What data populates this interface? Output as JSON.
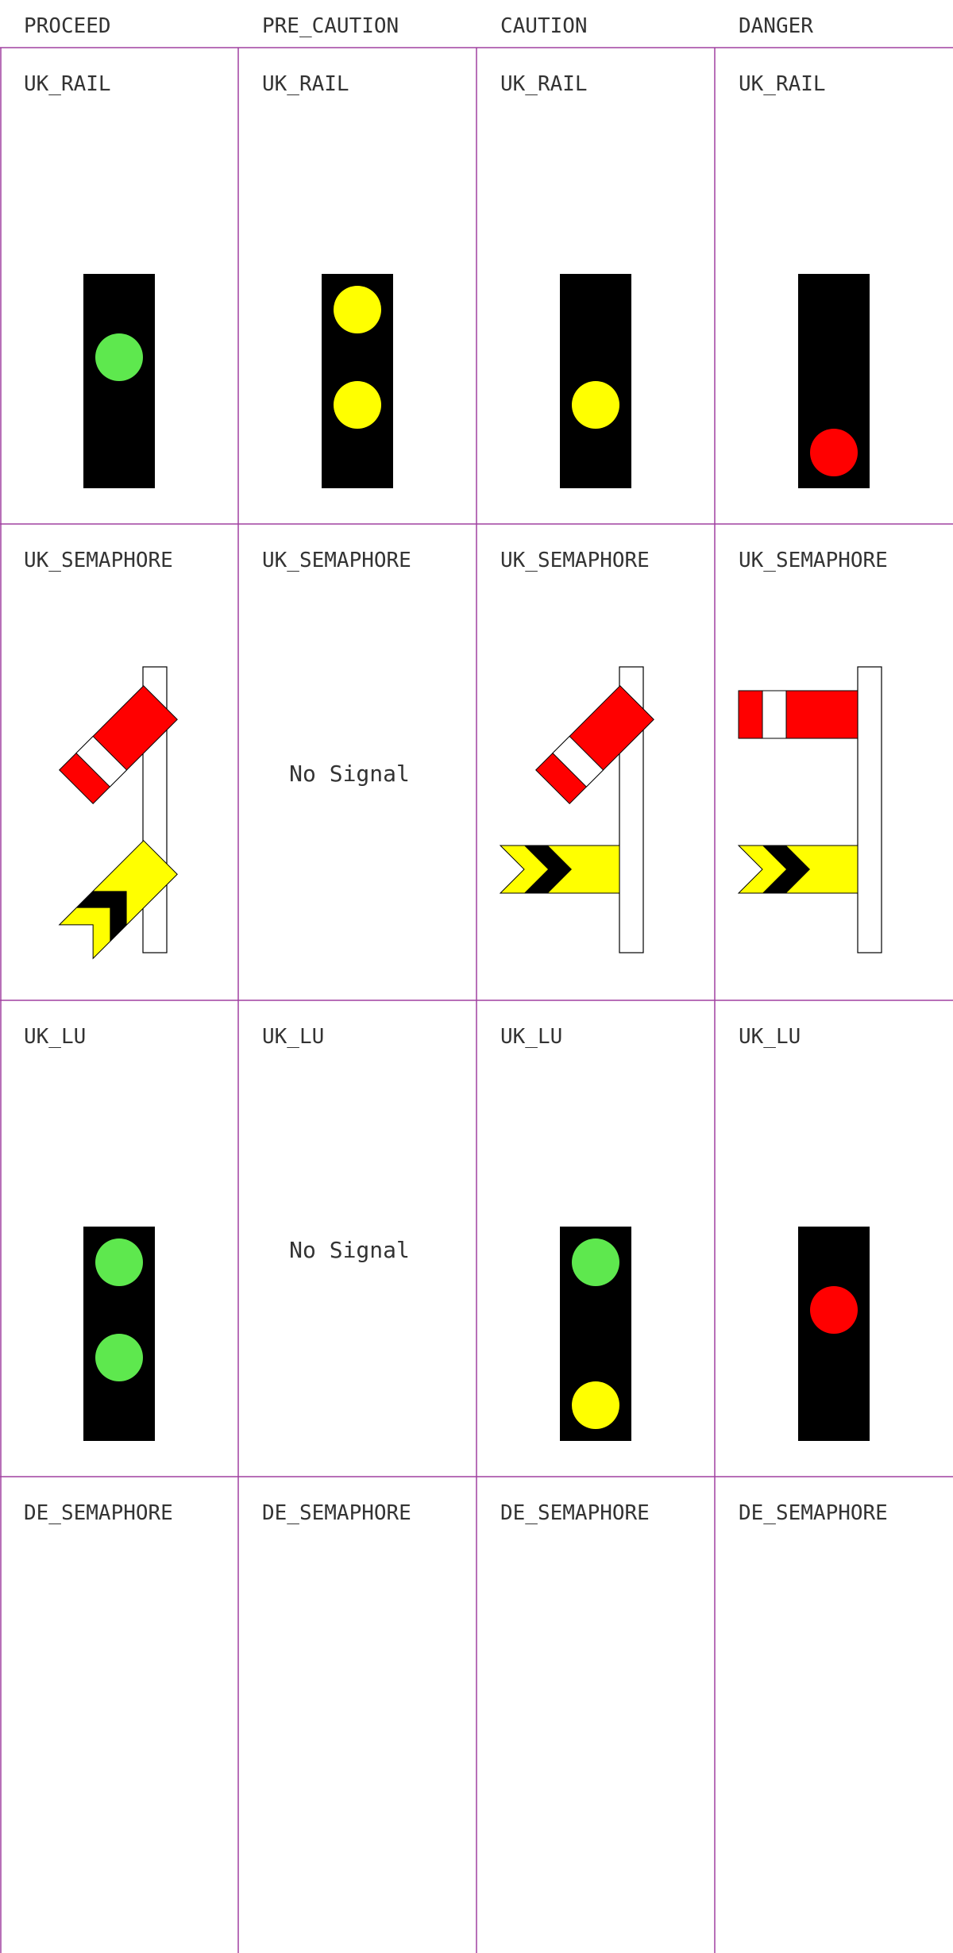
{
  "columns": [
    {
      "key": "proceed",
      "label": "PROCEED"
    },
    {
      "key": "pre_caution",
      "label": "PRE_CAUTION"
    },
    {
      "key": "caution",
      "label": "CAUTION"
    },
    {
      "key": "danger",
      "label": "DANGER"
    }
  ],
  "rows": [
    {
      "key": "uk_rail",
      "label": "UK_RAIL",
      "cells": [
        {
          "type": "light",
          "lamps": [
            "green"
          ]
        },
        {
          "type": "light",
          "lamps": [
            "yellow",
            "yellow"
          ]
        },
        {
          "type": "light",
          "lamps": [
            "yellow"
          ]
        },
        {
          "type": "light",
          "lamps": [
            "red"
          ]
        }
      ]
    },
    {
      "key": "uk_semaphore",
      "label": "UK_SEMAPHORE",
      "cells": [
        {
          "type": "semaphore",
          "home_arm": "raised",
          "distant_arm": "raised"
        },
        {
          "type": "none",
          "text": "No Signal"
        },
        {
          "type": "semaphore",
          "home_arm": "raised",
          "distant_arm": "horizontal"
        },
        {
          "type": "semaphore",
          "home_arm": "horizontal",
          "distant_arm": "horizontal"
        }
      ]
    },
    {
      "key": "uk_lu",
      "label": "UK_LU",
      "cells": [
        {
          "type": "light",
          "lamps": [
            "green",
            "green"
          ]
        },
        {
          "type": "none",
          "text": "No Signal"
        },
        {
          "type": "light",
          "lamps": [
            "green",
            "yellow"
          ]
        },
        {
          "type": "light",
          "lamps": [
            "red"
          ]
        }
      ]
    },
    {
      "key": "de_semaphore",
      "label": "DE_SEMAPHORE",
      "cells": [
        {
          "type": "blank"
        },
        {
          "type": "blank"
        },
        {
          "type": "blank"
        },
        {
          "type": "blank"
        }
      ]
    }
  ],
  "colors": {
    "grid_line": "#a040a0",
    "signal_body": "#000000",
    "green": "#5ee84e",
    "yellow": "#ffff00",
    "red": "#ff0000",
    "arm_stripe": "#ffffff",
    "chevron": "#000000"
  }
}
